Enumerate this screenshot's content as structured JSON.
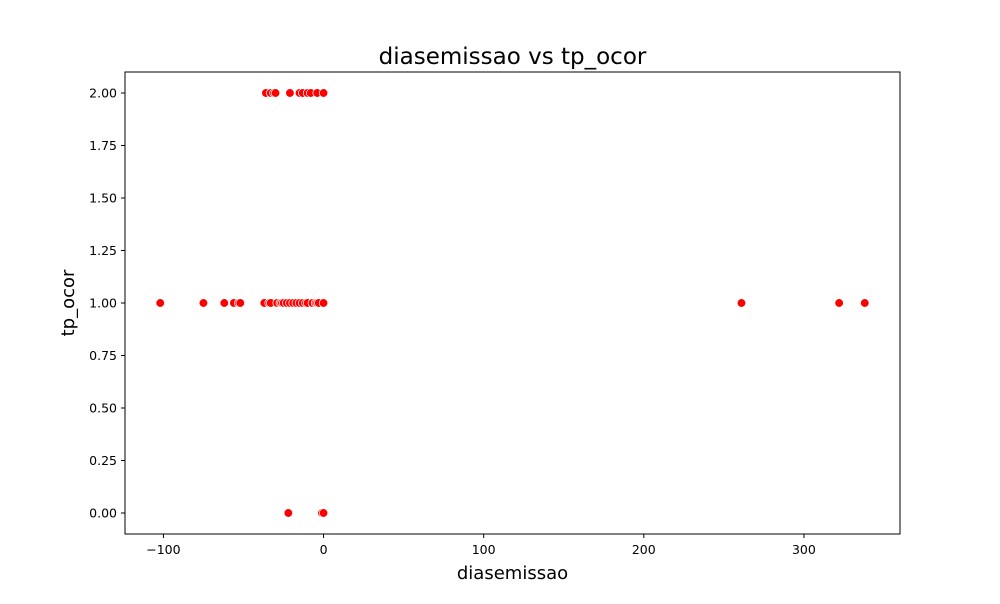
{
  "chart_data": {
    "type": "scatter",
    "title": "diasemissao vs tp_ocor",
    "xlabel": "diasemissao",
    "ylabel": "tp_ocor",
    "xlim": [
      -124,
      360
    ],
    "ylim": [
      -0.1,
      2.1
    ],
    "xticks": [
      -100,
      0,
      100,
      200,
      300
    ],
    "xtick_labels": [
      "−100",
      "0",
      "100",
      "200",
      "300"
    ],
    "yticks": [
      0,
      0.25,
      0.5,
      0.75,
      1.0,
      1.25,
      1.5,
      1.75,
      2.0
    ],
    "ytick_labels": [
      "0.00",
      "0.25",
      "0.50",
      "0.75",
      "1.00",
      "1.25",
      "1.50",
      "1.75",
      "2.00"
    ],
    "grid": false,
    "marker_color": "#ff0000",
    "points": [
      {
        "x": -36,
        "y": 2
      },
      {
        "x": -33,
        "y": 2
      },
      {
        "x": -31,
        "y": 2
      },
      {
        "x": -30,
        "y": 2
      },
      {
        "x": -21,
        "y": 2
      },
      {
        "x": -15,
        "y": 2
      },
      {
        "x": -13,
        "y": 2
      },
      {
        "x": -10,
        "y": 2
      },
      {
        "x": -8,
        "y": 2
      },
      {
        "x": -4,
        "y": 2
      },
      {
        "x": 0,
        "y": 2
      },
      {
        "x": -102,
        "y": 1
      },
      {
        "x": -75,
        "y": 1
      },
      {
        "x": -62,
        "y": 1
      },
      {
        "x": -56,
        "y": 1
      },
      {
        "x": -53,
        "y": 1
      },
      {
        "x": -52,
        "y": 1
      },
      {
        "x": -37,
        "y": 1
      },
      {
        "x": -34,
        "y": 1
      },
      {
        "x": -33,
        "y": 1
      },
      {
        "x": -29,
        "y": 1
      },
      {
        "x": -27,
        "y": 1
      },
      {
        "x": -26,
        "y": 1
      },
      {
        "x": -25,
        "y": 1
      },
      {
        "x": -23,
        "y": 1
      },
      {
        "x": -21,
        "y": 1
      },
      {
        "x": -19,
        "y": 1
      },
      {
        "x": -17,
        "y": 1
      },
      {
        "x": -15,
        "y": 1
      },
      {
        "x": -13,
        "y": 1
      },
      {
        "x": -11,
        "y": 1
      },
      {
        "x": -10,
        "y": 1
      },
      {
        "x": -7,
        "y": 1
      },
      {
        "x": -5,
        "y": 1
      },
      {
        "x": -4,
        "y": 1
      },
      {
        "x": -3,
        "y": 1
      },
      {
        "x": 0,
        "y": 1
      },
      {
        "x": 261,
        "y": 1
      },
      {
        "x": 322,
        "y": 1
      },
      {
        "x": 338,
        "y": 1
      },
      {
        "x": -22,
        "y": 0
      },
      {
        "x": -1,
        "y": 0
      },
      {
        "x": 0,
        "y": 0
      }
    ]
  }
}
